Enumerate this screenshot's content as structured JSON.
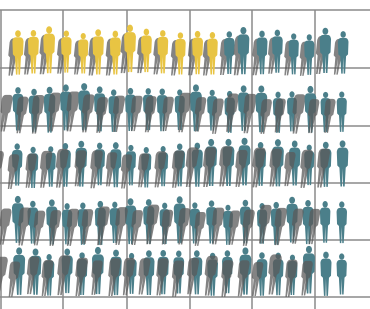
{
  "palette": {
    "highlight": "#e8c443",
    "base": "#4b7f8a",
    "shadow": "#5a5a5a",
    "grid": "#8a8a8a"
  },
  "rows": [
    {
      "highlighted": 13,
      "total": 21
    },
    {
      "highlighted": 0,
      "total": 21
    },
    {
      "highlighted": 0,
      "total": 21
    },
    {
      "highlighted": 0,
      "total": 21
    },
    {
      "highlighted": 0,
      "total": 21
    }
  ]
}
